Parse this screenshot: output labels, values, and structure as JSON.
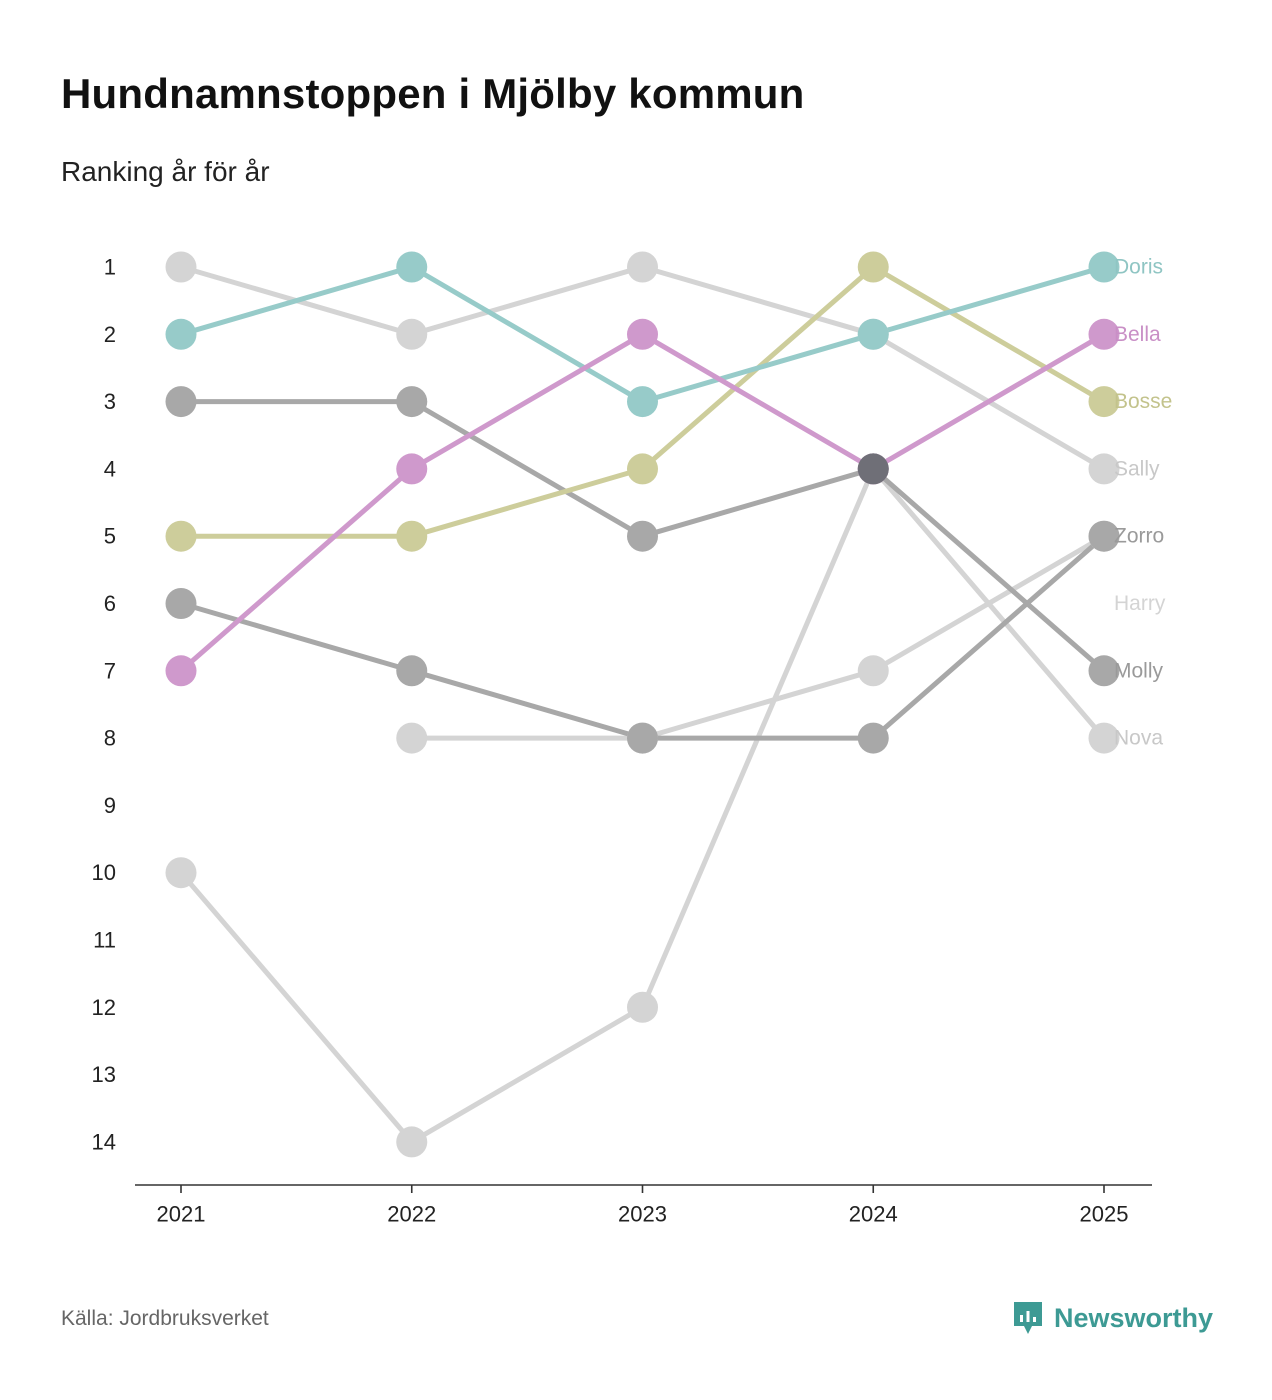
{
  "title": "Hundnamnstoppen i Mjölby kommun",
  "subtitle": "Ranking år för år",
  "source": "Källa: Jordbruksverket",
  "brand": "Newsworthy",
  "brand_icon": "newsworthy-logo-icon",
  "chart_data": {
    "type": "line",
    "subtype": "bump",
    "x": [
      "2021",
      "2022",
      "2023",
      "2024",
      "2025"
    ],
    "y_ticks": [
      1,
      2,
      3,
      4,
      5,
      6,
      7,
      8,
      9,
      10,
      11,
      12,
      13,
      14
    ],
    "ylim": [
      1,
      14
    ],
    "y_reversed": true,
    "xlabel": "",
    "ylabel": "",
    "series": [
      {
        "name": "Harry",
        "color": "#d4d4d4",
        "label_color": "#d4d4d4",
        "values": [
          null,
          8,
          8,
          7,
          5
        ],
        "end_label": "Harry",
        "end_rank": 6
      },
      {
        "name": "Nova",
        "color": "#d4d4d4",
        "label_color": "#c8c8c8",
        "values": [
          10,
          14,
          12,
          4,
          8
        ],
        "end_label": "Nova",
        "end_rank": 8
      },
      {
        "name": "Sally",
        "color": "#d4d4d4",
        "label_color": "#c8c8c8",
        "values": [
          1,
          2,
          1,
          2,
          4
        ],
        "end_label": "Sally",
        "end_rank": 4
      },
      {
        "name": "Molly",
        "color": "#a8a8a8",
        "label_color": "#9a9a9a",
        "values": [
          3,
          3,
          5,
          4,
          7
        ],
        "end_label": "Molly",
        "end_rank": 7
      },
      {
        "name": "Zorro",
        "color": "#a8a8a8",
        "label_color": "#9a9a9a",
        "values": [
          6,
          7,
          8,
          8,
          5
        ],
        "end_label": "Zorro",
        "end_rank": 5
      },
      {
        "name": "Bosse",
        "color": "#cdcd9b",
        "label_color": "#c3c38c",
        "values": [
          5,
          5,
          4,
          1,
          3
        ],
        "end_label": "Bosse",
        "end_rank": 3
      },
      {
        "name": "Doris",
        "color": "#97cbc9",
        "label_color": "#8fc5c3",
        "values": [
          2,
          1,
          3,
          2,
          1
        ],
        "end_label": "Doris",
        "end_rank": 1
      },
      {
        "name": "Bella",
        "color": "#cf99cc",
        "label_color": "#c98fc6",
        "values": [
          7,
          4,
          2,
          4,
          2
        ],
        "end_label": "Bella",
        "end_rank": 2
      }
    ],
    "highlight_points": [
      {
        "x": "2024",
        "y": 4,
        "color": "#6f6f77"
      }
    ]
  }
}
